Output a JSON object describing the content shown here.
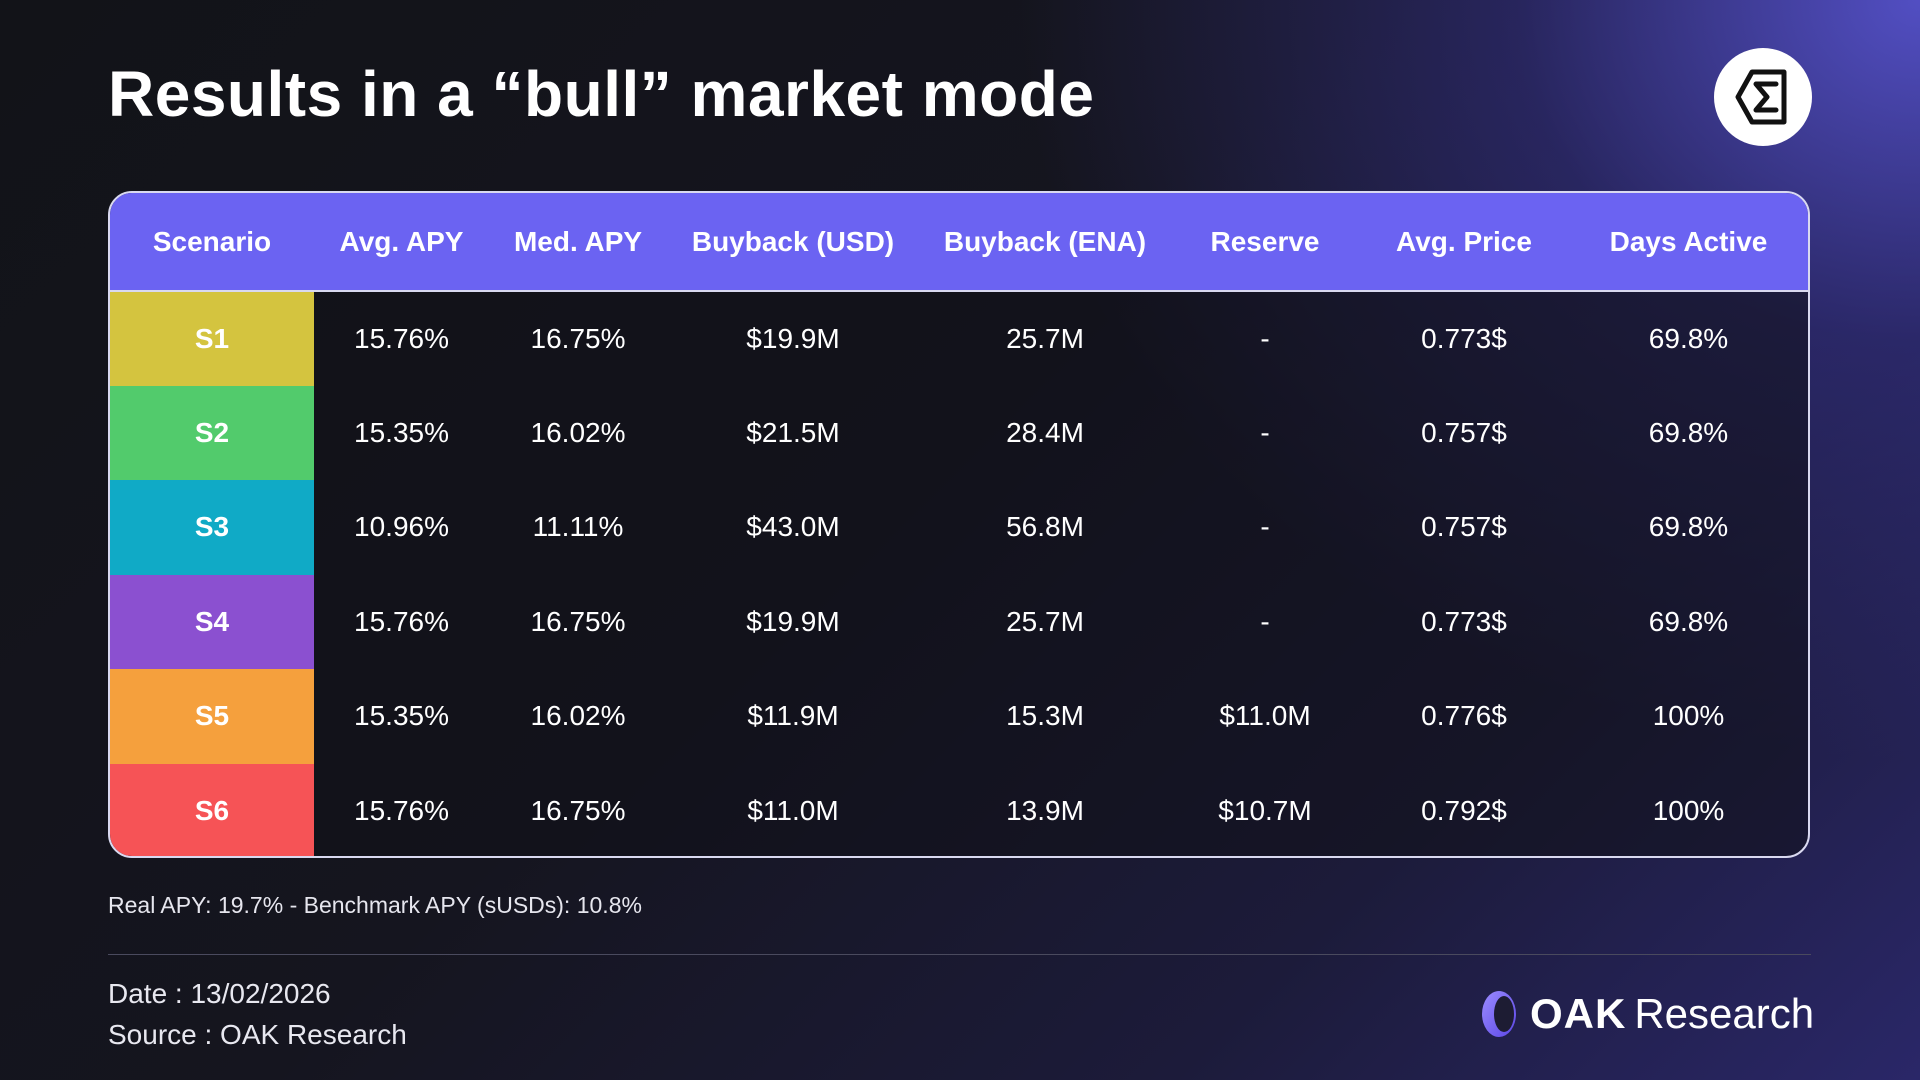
{
  "title": "Results in a “bull” market mode",
  "logo_icon": "sigma-shield-icon",
  "table": {
    "headers": [
      "Scenario",
      "Avg. APY",
      "Med. APY",
      "Buyback (USD)",
      "Buyback (ENA)",
      "Reserve",
      "Avg. Price",
      "Days Active"
    ],
    "rows": [
      {
        "scenario": "S1",
        "color": "#d4c43f",
        "avg_apy": "15.76%",
        "med_apy": "16.75%",
        "buyback_usd": "$19.9M",
        "buyback_ena": "25.7M",
        "reserve": "-",
        "avg_price": "0.773$",
        "days_active": "69.8%"
      },
      {
        "scenario": "S2",
        "color": "#52cb6c",
        "avg_apy": "15.35%",
        "med_apy": "16.02%",
        "buyback_usd": "$21.5M",
        "buyback_ena": "28.4M",
        "reserve": "-",
        "avg_price": "0.757$",
        "days_active": "69.8%"
      },
      {
        "scenario": "S3",
        "color": "#10aac6",
        "avg_apy": "10.96%",
        "med_apy": "11.11%",
        "buyback_usd": "$43.0M",
        "buyback_ena": "56.8M",
        "reserve": "-",
        "avg_price": "0.757$",
        "days_active": "69.8%"
      },
      {
        "scenario": "S4",
        "color": "#8b50d0",
        "avg_apy": "15.76%",
        "med_apy": "16.75%",
        "buyback_usd": "$19.9M",
        "buyback_ena": "25.7M",
        "reserve": "-",
        "avg_price": "0.773$",
        "days_active": "69.8%"
      },
      {
        "scenario": "S5",
        "color": "#f5a03d",
        "avg_apy": "15.35%",
        "med_apy": "16.02%",
        "buyback_usd": "$11.9M",
        "buyback_ena": "15.3M",
        "reserve": "$11.0M",
        "avg_price": "0.776$",
        "days_active": "100%"
      },
      {
        "scenario": "S6",
        "color": "#f65356",
        "avg_apy": "15.76%",
        "med_apy": "16.75%",
        "buyback_usd": "$11.0M",
        "buyback_ena": "13.9M",
        "reserve": "$10.7M",
        "avg_price": "0.792$",
        "days_active": "100%"
      }
    ],
    "header_color": "#6b63f2"
  },
  "footnote": "Real APY: 19.7% - Benchmark APY (sUSDs): 10.8%",
  "date": "Date : 13/02/2026",
  "source": "Source : OAK Research",
  "brand": {
    "oak": "OAK",
    "research": "Research",
    "icon": "oak-logo-icon",
    "accent": "#7a6cf5"
  }
}
